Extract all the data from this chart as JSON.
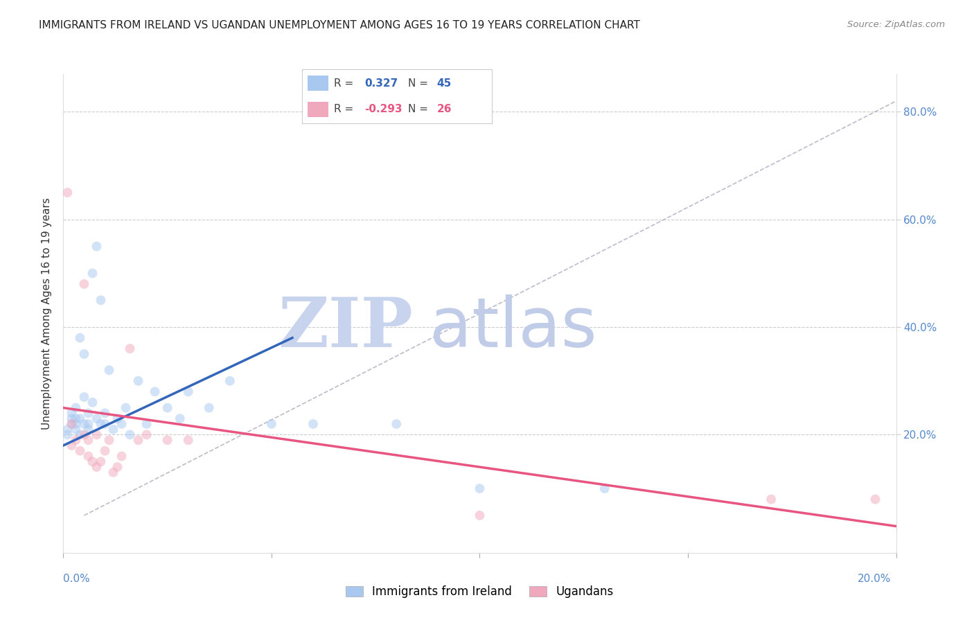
{
  "title": "IMMIGRANTS FROM IRELAND VS UGANDAN UNEMPLOYMENT AMONG AGES 16 TO 19 YEARS CORRELATION CHART",
  "source": "Source: ZipAtlas.com",
  "ylabel": "Unemployment Among Ages 16 to 19 years",
  "y_tick_positions": [
    0.0,
    0.2,
    0.4,
    0.6,
    0.8
  ],
  "x_lim": [
    0.0,
    0.2
  ],
  "y_lim": [
    -0.02,
    0.87
  ],
  "legend_blue_r": "0.327",
  "legend_blue_n": "45",
  "legend_pink_r": "-0.293",
  "legend_pink_n": "26",
  "legend_label_blue": "Immigrants from Ireland",
  "legend_label_pink": "Ugandans",
  "blue_color": "#A8C8F0",
  "pink_color": "#F0A8BC",
  "blue_line_color": "#3366BB",
  "pink_line_color": "#E85580",
  "dashed_line_color": "#BBBBCC",
  "title_color": "#222222",
  "right_axis_color": "#5588CC",
  "watermark_zip_color": "#C8D4EE",
  "watermark_atlas_color": "#C0CCE8",
  "blue_scatter_x": [
    0.001,
    0.001,
    0.002,
    0.002,
    0.002,
    0.003,
    0.003,
    0.003,
    0.003,
    0.004,
    0.004,
    0.004,
    0.005,
    0.005,
    0.005,
    0.006,
    0.006,
    0.006,
    0.007,
    0.007,
    0.008,
    0.008,
    0.009,
    0.009,
    0.01,
    0.01,
    0.011,
    0.012,
    0.013,
    0.014,
    0.015,
    0.016,
    0.018,
    0.02,
    0.022,
    0.025,
    0.028,
    0.03,
    0.035,
    0.04,
    0.05,
    0.06,
    0.08,
    0.1,
    0.13
  ],
  "blue_scatter_y": [
    0.21,
    0.2,
    0.22,
    0.23,
    0.24,
    0.21,
    0.23,
    0.25,
    0.22,
    0.2,
    0.23,
    0.38,
    0.22,
    0.35,
    0.27,
    0.22,
    0.24,
    0.21,
    0.26,
    0.5,
    0.23,
    0.55,
    0.22,
    0.45,
    0.24,
    0.22,
    0.32,
    0.21,
    0.23,
    0.22,
    0.25,
    0.2,
    0.3,
    0.22,
    0.28,
    0.25,
    0.23,
    0.28,
    0.25,
    0.3,
    0.22,
    0.22,
    0.22,
    0.1,
    0.1
  ],
  "pink_scatter_x": [
    0.001,
    0.002,
    0.002,
    0.003,
    0.004,
    0.005,
    0.005,
    0.006,
    0.006,
    0.007,
    0.008,
    0.008,
    0.009,
    0.01,
    0.011,
    0.012,
    0.013,
    0.014,
    0.016,
    0.018,
    0.02,
    0.025,
    0.03,
    0.1,
    0.17,
    0.195
  ],
  "pink_scatter_y": [
    0.65,
    0.22,
    0.18,
    0.19,
    0.17,
    0.48,
    0.2,
    0.16,
    0.19,
    0.15,
    0.14,
    0.2,
    0.15,
    0.17,
    0.19,
    0.13,
    0.14,
    0.16,
    0.36,
    0.19,
    0.2,
    0.19,
    0.19,
    0.05,
    0.08,
    0.08
  ],
  "blue_trend_x": [
    0.0,
    0.055
  ],
  "blue_trend_y": [
    0.18,
    0.38
  ],
  "pink_trend_x": [
    0.0,
    0.2
  ],
  "pink_trend_y": [
    0.25,
    0.03
  ],
  "dashed_trend_x": [
    0.005,
    0.2
  ],
  "dashed_trend_y": [
    0.05,
    0.82
  ],
  "scatter_size": 100,
  "scatter_alpha": 0.5,
  "background_color": "#FFFFFF"
}
